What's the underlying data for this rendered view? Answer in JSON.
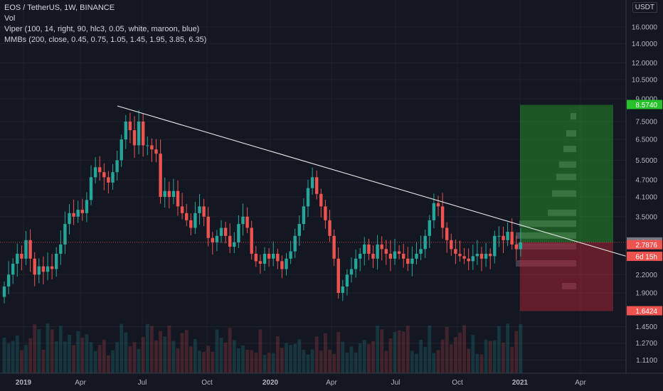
{
  "header": {
    "symbol_line": "EOS / TetherUS, 1W, BINANCE",
    "indicators": [
      "Vol",
      "Viper (100, 14, right, 90, hlc3, 0.05, white, maroon, blue)",
      "MMBs (200, close, 0.45, 0.75, 1.05, 1.45, 1.95, 3.85, 6.35)"
    ],
    "currency": "USDT"
  },
  "colors": {
    "background": "#131722",
    "up": "#26a69a",
    "down": "#ef5350",
    "grid": "#1e222d",
    "text": "#b2b5be",
    "target": "#27a62b",
    "stop": "#b22833",
    "trendline": "#e8e8e8"
  },
  "chart_data": {
    "type": "candlestick",
    "y_scale": "log",
    "ylim": [
      1.0,
      20.0
    ],
    "y_ticks": [
      "16.0000",
      "14.0000",
      "12.0000",
      "10.5000",
      "9.0000",
      "7.5000",
      "6.5000",
      "5.5000",
      "4.7000",
      "4.1000",
      "3.5000",
      "2.2000",
      "1.9000",
      "1.4500",
      "1.2700",
      "1.1100"
    ],
    "x_ticks": [
      "2019",
      "Apr",
      "Jul",
      "Oct",
      "2020",
      "Apr",
      "Jul",
      "Oct",
      "2021",
      "Apr"
    ],
    "price_labels": [
      {
        "text": "8.5740",
        "value": 8.574,
        "color": "#27c22b"
      },
      {
        "text": "2.8492",
        "value": 2.8492,
        "color": "#787b86"
      },
      {
        "text": "2.7876",
        "value": 2.7876,
        "color": "#ef5350"
      },
      {
        "text": "6d 15h",
        "value": 2.54,
        "color": "#ef5350"
      },
      {
        "text": "1.6424",
        "value": 1.6424,
        "color": "#ef5350"
      }
    ],
    "closes": [
      2.0,
      2.2,
      2.4,
      2.6,
      2.5,
      2.9,
      2.5,
      2.2,
      2.35,
      2.25,
      2.35,
      2.3,
      2.6,
      2.8,
      3.3,
      3.6,
      3.5,
      3.7,
      3.6,
      4.0,
      4.8,
      5.2,
      5.0,
      4.8,
      4.6,
      5.0,
      5.5,
      6.5,
      7.5,
      7.0,
      6.2,
      7.5,
      6.2,
      6.2,
      6.0,
      5.8,
      4.1,
      4.3,
      4.1,
      4.3,
      3.8,
      3.6,
      3.4,
      3.2,
      3.6,
      3.8,
      3.5,
      2.95,
      2.85,
      3.0,
      3.2,
      3.0,
      2.75,
      2.85,
      3.3,
      3.5,
      3.2,
      2.6,
      2.45,
      2.4,
      2.6,
      2.5,
      2.6,
      2.45,
      2.3,
      2.5,
      2.65,
      3.0,
      3.3,
      3.8,
      4.4,
      4.8,
      4.2,
      3.8,
      3.4,
      3.0,
      2.5,
      1.9,
      2.0,
      2.2,
      2.3,
      2.5,
      2.6,
      2.8,
      2.6,
      2.5,
      2.8,
      2.7,
      2.6,
      2.5,
      2.65,
      2.6,
      2.5,
      2.4,
      2.5,
      2.6,
      2.7,
      3.0,
      3.4,
      3.9,
      3.8,
      3.2,
      2.9,
      2.7,
      2.6,
      2.55,
      2.5,
      2.45,
      2.55,
      2.6,
      2.5,
      2.6,
      2.55,
      3.0,
      3.0,
      2.9,
      3.1,
      2.8,
      2.7,
      2.85
    ]
  }
}
